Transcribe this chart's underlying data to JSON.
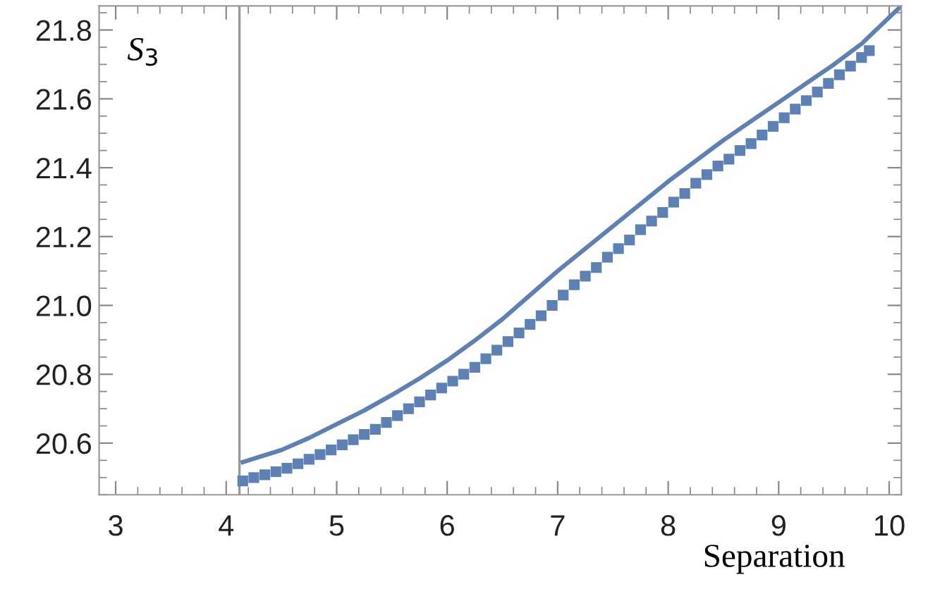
{
  "chart_data": {
    "type": "line",
    "xlabel": "Separation",
    "annotations": [
      "S$_{3}$"
    ],
    "xlim": [
      2.85,
      10.11
    ],
    "ylim": [
      20.45,
      21.87
    ],
    "xticks": [
      3,
      4,
      5,
      6,
      7,
      8,
      9,
      10
    ],
    "yticks": [
      20.6,
      20.8,
      {
        "value": 21.0,
        "label": "21.0"
      },
      21.2,
      21.4,
      21.6,
      21.8
    ],
    "ref_lines": [
      {
        "axis": "x",
        "value": 4.12,
        "color": "#999999"
      }
    ],
    "grid": false,
    "legend": false,
    "series": [
      {
        "color": "#5e81b5",
        "marker": "none",
        "line_style": "solid",
        "x": [
          4.15,
          4.3,
          4.5,
          4.75,
          5.0,
          5.25,
          5.5,
          5.75,
          6.0,
          6.25,
          6.5,
          6.75,
          7.0,
          7.25,
          7.5,
          7.75,
          8.0,
          8.25,
          8.5,
          8.75,
          9.0,
          9.25,
          9.5,
          9.75,
          10.11
        ],
        "values": [
          20.545,
          20.56,
          20.58,
          20.615,
          20.655,
          20.695,
          20.74,
          20.788,
          20.84,
          20.898,
          20.96,
          21.03,
          21.1,
          21.165,
          21.23,
          21.295,
          21.36,
          21.42,
          21.48,
          21.535,
          21.59,
          21.645,
          21.7,
          21.76,
          21.87
        ]
      },
      {
        "type": "scatter",
        "color": "#5e81b5",
        "marker": "square",
        "x": [
          4.15,
          4.25,
          4.35,
          4.45,
          4.55,
          4.65,
          4.75,
          4.85,
          4.95,
          5.05,
          5.15,
          5.25,
          5.35,
          5.45,
          5.55,
          5.65,
          5.75,
          5.85,
          5.95,
          6.05,
          6.15,
          6.25,
          6.35,
          6.45,
          6.55,
          6.65,
          6.75,
          6.85,
          6.95,
          7.05,
          7.15,
          7.25,
          7.35,
          7.45,
          7.55,
          7.65,
          7.75,
          7.85,
          7.95,
          8.05,
          8.15,
          8.25,
          8.35,
          8.45,
          8.55,
          8.65,
          8.75,
          8.85,
          8.95,
          9.05,
          9.15,
          9.25,
          9.35,
          9.45,
          9.55,
          9.65,
          9.75,
          9.82
        ],
        "values": [
          20.49,
          20.5,
          20.508,
          20.517,
          20.527,
          20.54,
          20.553,
          20.567,
          20.58,
          20.595,
          20.61,
          20.625,
          20.64,
          20.66,
          20.68,
          20.7,
          20.72,
          20.74,
          20.76,
          20.78,
          20.8,
          20.82,
          20.845,
          20.87,
          20.895,
          20.92,
          20.945,
          20.97,
          21.0,
          21.03,
          21.06,
          21.085,
          21.11,
          21.14,
          21.165,
          21.19,
          21.22,
          21.245,
          21.27,
          21.3,
          21.325,
          21.355,
          21.38,
          21.405,
          21.425,
          21.45,
          21.47,
          21.495,
          21.52,
          21.545,
          21.57,
          21.595,
          21.62,
          21.645,
          21.67,
          21.695,
          21.72,
          21.74
        ]
      }
    ]
  }
}
